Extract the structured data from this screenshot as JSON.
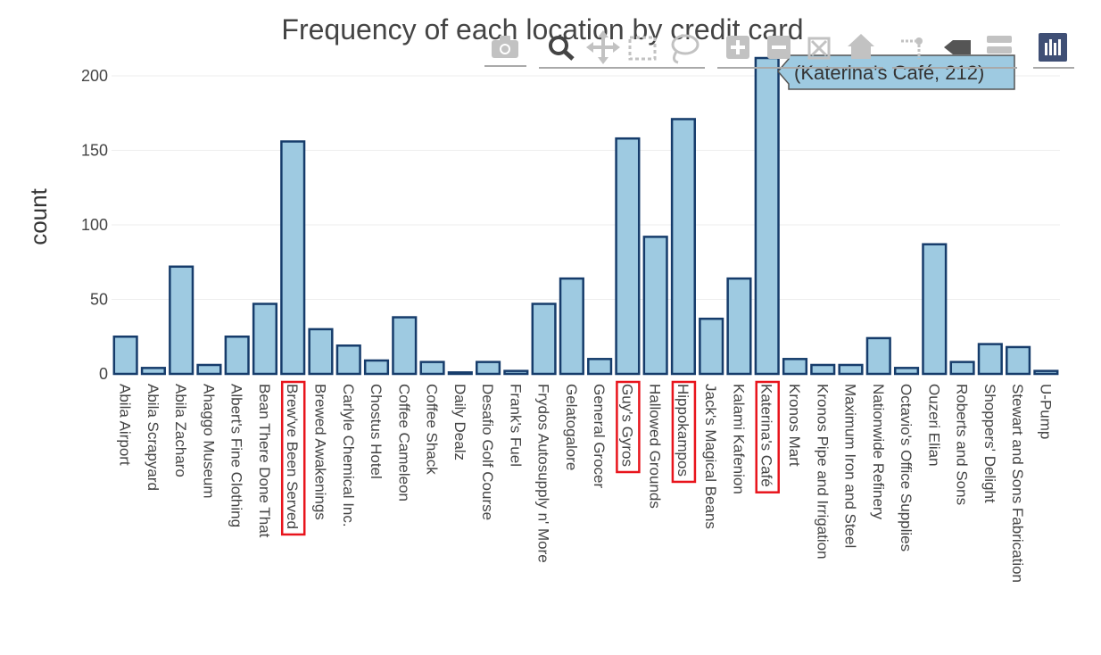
{
  "chart_data": {
    "type": "bar",
    "title": "Frequency of each location by credit card",
    "xlabel": "",
    "ylabel": "count",
    "ylim": [
      0,
      215
    ],
    "yticks": [
      0,
      50,
      100,
      150,
      200
    ],
    "grid": true,
    "categories": [
      "Abila Airport",
      "Abila Scrapyard",
      "Abila Zacharo",
      "Ahaggo Museum",
      "Albert's Fine Clothing",
      "Bean There Done That",
      "Brew've Been Served",
      "Brewed Awakenings",
      "Carlyle Chemical Inc.",
      "Chostus Hotel",
      "Coffee Cameleon",
      "Coffee Shack",
      "Daily Dealz",
      "Desafio Golf Course",
      "Frank's Fuel",
      "Frydos Autosupply n' More",
      "Gelatogalore",
      "General Grocer",
      "Guy's Gyros",
      "Hallowed Grounds",
      "Hippokampos",
      "Jack's Magical Beans",
      "Kalami Kafenion",
      "Katerina's Café",
      "Kronos Mart",
      "Kronos Pipe and Irrigation",
      "Maximum Iron and Steel",
      "Nationwide Refinery",
      "Octavio's Office Supplies",
      "Ouzeri Elian",
      "Roberts and Sons",
      "Shoppers' Delight",
      "Stewart and Sons Fabrication",
      "U-Pump"
    ],
    "values": [
      25,
      4,
      72,
      6,
      25,
      47,
      156,
      30,
      19,
      9,
      38,
      8,
      1,
      8,
      2,
      47,
      64,
      10,
      158,
      92,
      171,
      37,
      64,
      212,
      10,
      6,
      6,
      24,
      4,
      87,
      8,
      20,
      18,
      2
    ],
    "highlighted": [
      "Brew've Been Served",
      "Guy's Gyros",
      "Hippokampos",
      "Katerina's Café"
    ],
    "bar_color": "#9ecae1",
    "bar_outline_color": "#163c6b",
    "highlight_color": "#e8141c"
  },
  "tooltip": {
    "text": "(Katerina's Café, 212)"
  },
  "modebar": {
    "icons": [
      "camera-icon",
      "zoom-icon",
      "pan-icon",
      "box-select-icon",
      "lasso-select-icon",
      "zoom-in-icon",
      "zoom-out-icon",
      "autoscale-icon",
      "reset-axes-icon",
      "spike-lines-icon",
      "hover-closest-icon",
      "hover-compare-icon",
      "plotly-logo-icon"
    ]
  }
}
